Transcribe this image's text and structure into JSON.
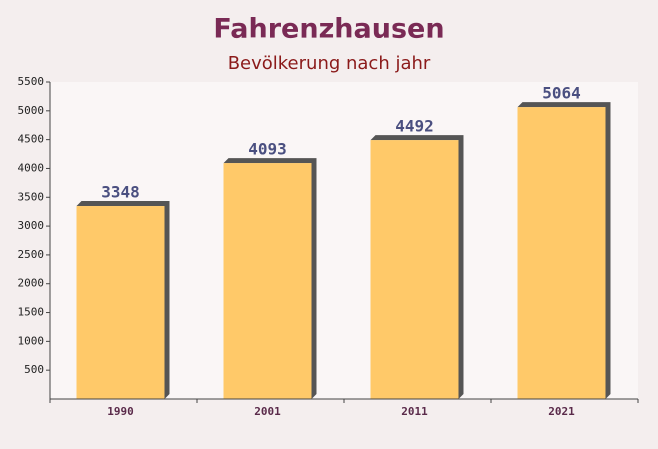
{
  "chart_data": {
    "type": "bar",
    "title": "Fahrenzhausen",
    "subtitle": "Bevölkerung nach jahr",
    "categories": [
      "1990",
      "2001",
      "2011",
      "2021"
    ],
    "values": [
      3348,
      4093,
      4492,
      5064
    ],
    "color": "#ffc45a",
    "ylim": [
      0,
      5500
    ],
    "yticks": [
      500,
      1000,
      1500,
      2000,
      2500,
      3000,
      3500,
      4000,
      4500,
      5000,
      5500
    ]
  }
}
